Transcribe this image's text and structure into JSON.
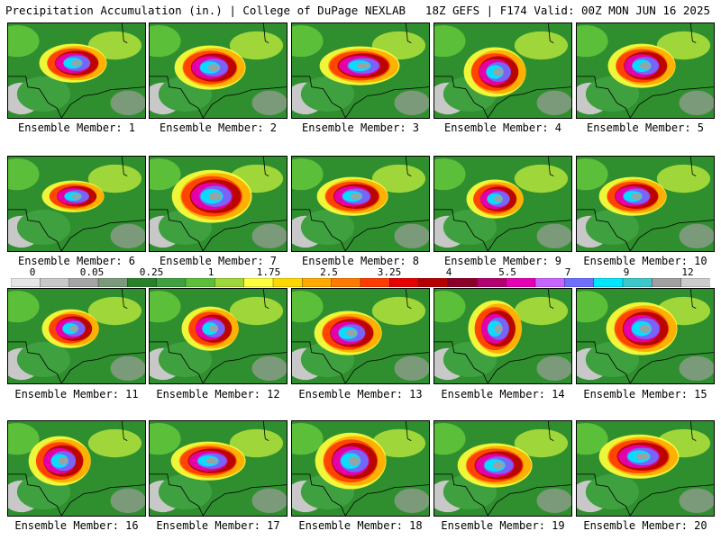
{
  "header": {
    "left": "Precipitation Accumulation (in.) | College of DuPage NEXLAB",
    "right": "18Z GEFS | F174 Valid: 00Z MON JUN 16 2025"
  },
  "colorbar": {
    "tick_labels": [
      "0",
      "0.05",
      "0.25",
      "1",
      "1.75",
      "2.5",
      "3.25",
      "4",
      "5.5",
      "7",
      "9",
      "12"
    ],
    "bins": [
      "#e6e6e6",
      "#c8c8c8",
      "#a5a5a5",
      "#7a9a7a",
      "#2a7f2a",
      "#3fa03f",
      "#5cbf3a",
      "#9fd63a",
      "#ffff3c",
      "#ffd700",
      "#ffaa00",
      "#ff7a00",
      "#ff3c00",
      "#e60000",
      "#b40000",
      "#8c0028",
      "#b4006e",
      "#e600b4",
      "#c864ff",
      "#6e6eff",
      "#00e6ff",
      "#3cc8c8",
      "#a0a0a0",
      "#cccccc"
    ]
  },
  "members": [
    {
      "label": "Ensemble Member: 1"
    },
    {
      "label": "Ensemble Member: 2"
    },
    {
      "label": "Ensemble Member: 3"
    },
    {
      "label": "Ensemble Member: 4"
    },
    {
      "label": "Ensemble Member: 5"
    },
    {
      "label": "Ensemble Member: 6"
    },
    {
      "label": "Ensemble Member: 7"
    },
    {
      "label": "Ensemble Member: 8"
    },
    {
      "label": "Ensemble Member: 9"
    },
    {
      "label": "Ensemble Member: 10"
    },
    {
      "label": "Ensemble Member: 11"
    },
    {
      "label": "Ensemble Member: 12"
    },
    {
      "label": "Ensemble Member: 13"
    },
    {
      "label": "Ensemble Member: 14"
    },
    {
      "label": "Ensemble Member: 15"
    },
    {
      "label": "Ensemble Member: 16"
    },
    {
      "label": "Ensemble Member: 17"
    },
    {
      "label": "Ensemble Member: 18"
    },
    {
      "label": "Ensemble Member: 19"
    },
    {
      "label": "Ensemble Member: 20"
    }
  ]
}
